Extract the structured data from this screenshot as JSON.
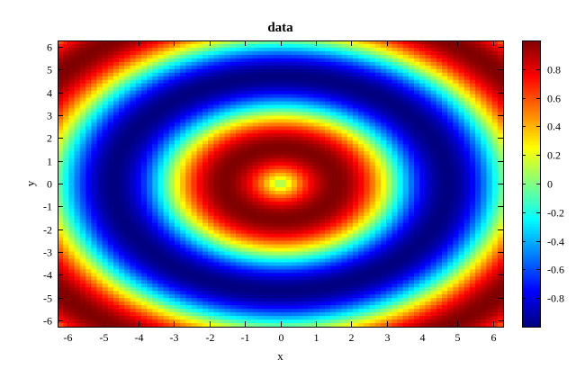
{
  "chart_data": {
    "type": "heatmap",
    "title": "data",
    "xlabel": "x",
    "ylabel": "y",
    "function": "sin(sqrt(x^2 + y^2))",
    "xlim": [
      -6.283,
      6.283
    ],
    "ylim": [
      -6.283,
      6.283
    ],
    "grid_size": [
      80,
      80
    ],
    "x_ticks": [
      -6,
      -5,
      -4,
      -3,
      -2,
      -1,
      0,
      1,
      2,
      3,
      4,
      5,
      6
    ],
    "y_ticks": [
      6,
      5,
      4,
      3,
      2,
      1,
      0,
      -1,
      -2,
      -3,
      -4,
      -5,
      -6
    ],
    "colorbar": {
      "colormap": "jet",
      "range": [
        -1,
        1
      ],
      "ticks": [
        0.8,
        0.6,
        0.4,
        0.2,
        0,
        -0.2,
        -0.4,
        -0.6,
        -0.8
      ]
    },
    "grid": false
  }
}
